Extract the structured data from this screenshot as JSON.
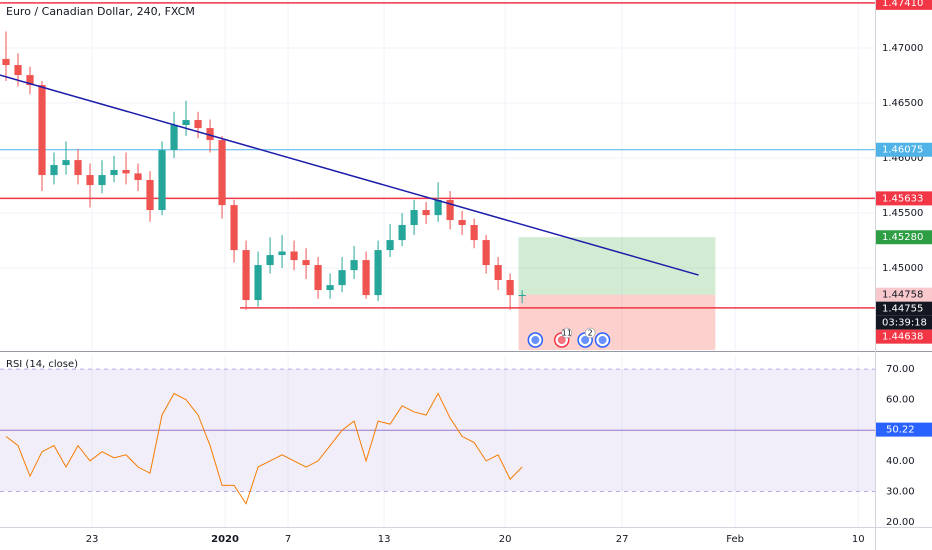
{
  "chart_data": {
    "type": "candlestick",
    "title": "Euro / Canadian Dollar, 240, FXCM",
    "open": [
      1.469,
      1.46845,
      1.46754,
      1.46663,
      1.45845,
      1.45936,
      1.45981,
      1.45845,
      1.45754,
      1.45845,
      1.45891,
      1.4586,
      1.458,
      1.45527,
      1.46072,
      1.463,
      1.46345,
      1.46272,
      1.46163,
      1.45572,
      1.45163,
      1.44709,
      1.45027,
      1.45118,
      1.4515,
      1.45072,
      1.45027,
      1.448,
      1.44845,
      1.44981,
      1.45072,
      1.44754,
      1.45163,
      1.45254,
      1.45391,
      1.45527,
      1.45481,
      1.45618,
      1.45436,
      1.45391,
      1.45254,
      1.45027,
      1.44891,
      1.44754
    ],
    "high": [
      1.4715,
      1.4695,
      1.4683,
      1.467,
      1.4605,
      1.4615,
      1.4608,
      1.4595,
      1.4598,
      1.4602,
      1.4605,
      1.4595,
      1.4588,
      1.4615,
      1.4642,
      1.4652,
      1.4642,
      1.4635,
      1.462,
      1.4562,
      1.4525,
      1.4515,
      1.4528,
      1.453,
      1.4525,
      1.4518,
      1.451,
      1.4495,
      1.451,
      1.452,
      1.4515,
      1.4525,
      1.454,
      1.455,
      1.4562,
      1.456,
      1.4578,
      1.457,
      1.4552,
      1.4545,
      1.453,
      1.451,
      1.4495,
      1.448
    ],
    "low": [
      1.467,
      1.4665,
      1.4658,
      1.457,
      1.4576,
      1.4585,
      1.4576,
      1.4555,
      1.4568,
      1.4578,
      1.4576,
      1.457,
      1.4542,
      1.4548,
      1.46,
      1.462,
      1.4618,
      1.4605,
      1.4545,
      1.4505,
      1.4462,
      1.4465,
      1.4495,
      1.45,
      1.4498,
      1.449,
      1.4472,
      1.4472,
      1.4478,
      1.449,
      1.4472,
      1.447,
      1.451,
      1.452,
      1.453,
      1.454,
      1.4542,
      1.4535,
      1.453,
      1.4518,
      1.4495,
      1.448,
      1.4462,
      1.4468
    ],
    "close": [
      1.46845,
      1.46754,
      1.46663,
      1.45845,
      1.45936,
      1.45981,
      1.45845,
      1.45754,
      1.45845,
      1.45891,
      1.4586,
      1.458,
      1.45527,
      1.46072,
      1.463,
      1.46345,
      1.46272,
      1.46163,
      1.45572,
      1.45163,
      1.44709,
      1.45027,
      1.45118,
      1.4515,
      1.45072,
      1.45027,
      1.448,
      1.44845,
      1.44981,
      1.45072,
      1.44754,
      1.45163,
      1.45254,
      1.45391,
      1.45527,
      1.45481,
      1.45618,
      1.45436,
      1.45391,
      1.45254,
      1.45027,
      1.44891,
      1.44754,
      1.44755
    ],
    "up_color": "#26a69a",
    "down_color": "#ef5350",
    "grid": true,
    "xlim": [
      0,
      72.9
    ],
    "xticks": [
      {
        "value": 7.67,
        "label": "23"
      },
      {
        "value": 18.75,
        "label": "2020"
      },
      {
        "value": 24,
        "label": "7"
      },
      {
        "value": 32,
        "label": "13"
      },
      {
        "value": 42.08,
        "label": "20"
      },
      {
        "value": 51.83,
        "label": "27"
      },
      {
        "value": 61.25,
        "label": "Feb"
      },
      {
        "value": 71.5,
        "label": "10"
      }
    ],
    "ylim": [
      1.44255,
      1.47436
    ],
    "yticks": [
      {
        "value": 1.47,
        "label": "1.47000"
      },
      {
        "value": 1.465,
        "label": "1.46500"
      },
      {
        "value": 1.46,
        "label": "1.46000"
      },
      {
        "value": 1.455,
        "label": "1.45500"
      },
      {
        "value": 1.45,
        "label": "1.45000"
      }
    ],
    "levels": [
      {
        "value": 1.4741,
        "label": "1.47410",
        "color": "#f23645"
      },
      {
        "value": 1.46075,
        "label": "1.46075",
        "color": "#4fb3e8"
      },
      {
        "value": 1.45633,
        "label": "1.45633",
        "color": "#f23645"
      },
      {
        "value": 1.44638,
        "label": "1.44638",
        "color": "#f23645",
        "x_start": 20
      }
    ],
    "trendline": {
      "x": [
        0,
        58.2
      ],
      "y": [
        1.46754,
        1.44936
      ],
      "color": "#1c1caa"
    },
    "position": {
      "x": [
        43.2,
        59.6
      ],
      "entry": 1.44758,
      "target": {
        "value": 1.4528,
        "label": "1.45280"
      },
      "profit_color": "#4caf50",
      "loss_color": "#f44336"
    },
    "countdown": "03:39:18",
    "events": [
      {
        "x": 44.6,
        "color": "#2962ff"
      },
      {
        "x": 46.8,
        "color": "#f23645",
        "label": "11"
      },
      {
        "x": 48.75,
        "color": "#2962ff",
        "label": "2"
      },
      {
        "x": 50.2,
        "color": "#2962ff"
      }
    ],
    "rsi": {
      "title": "RSI (14, close)",
      "values": [
        48,
        45,
        35,
        43,
        45,
        38,
        45,
        40,
        43,
        41,
        42,
        38,
        36,
        55,
        62,
        60,
        55,
        45,
        32,
        32,
        26,
        38,
        40,
        42,
        40,
        38,
        40,
        45,
        50,
        53,
        40,
        53,
        52,
        58,
        56,
        55,
        62,
        54,
        48,
        46,
        40,
        42,
        34,
        38
      ],
      "color": "#f57c00",
      "ylim": [
        18.4,
        74.6
      ],
      "yticks": [
        {
          "value": 70,
          "label": "70.00"
        },
        {
          "value": 60,
          "label": "60.00"
        },
        {
          "value": 50,
          "label": "50.00"
        },
        {
          "value": 40,
          "label": "40.00"
        },
        {
          "value": 30,
          "label": "30.00"
        },
        {
          "value": 20,
          "label": "20.00"
        }
      ],
      "band": [
        30,
        70
      ],
      "band_color": "#7e57c2",
      "midline": 50,
      "marker": 50.22
    }
  }
}
